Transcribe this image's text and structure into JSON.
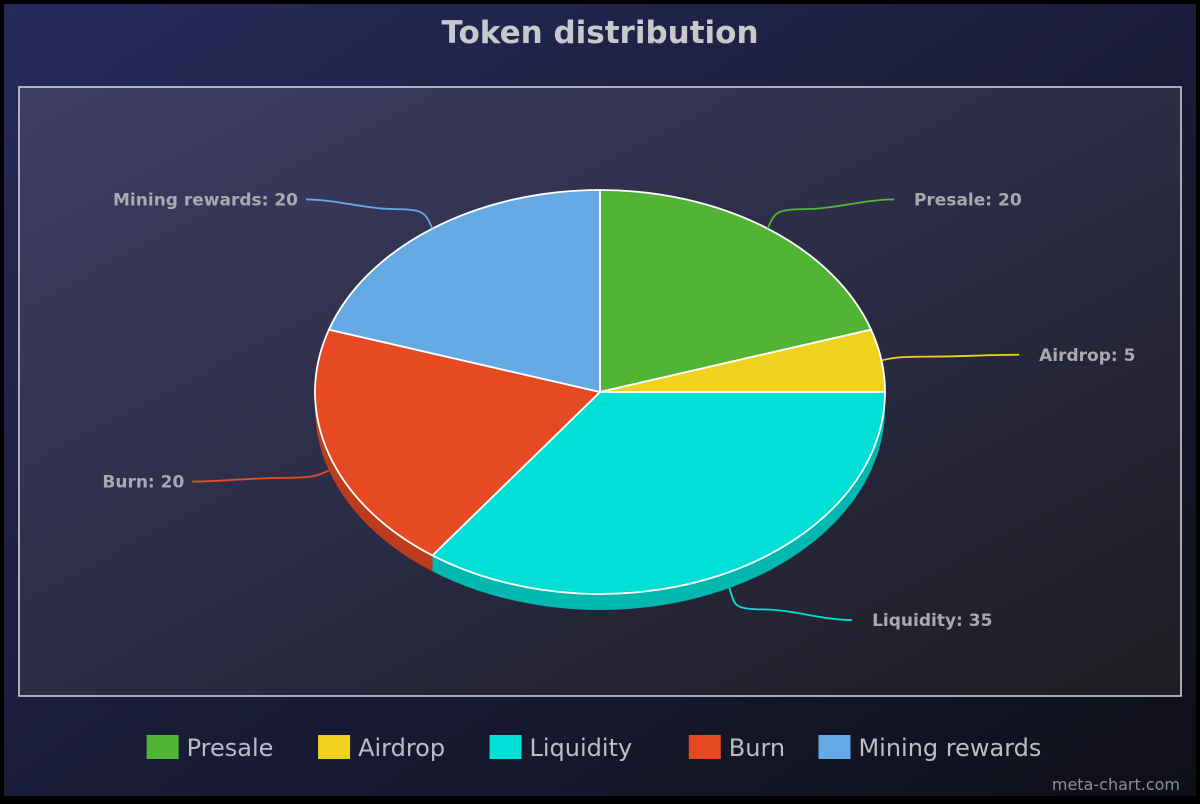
{
  "chart_data": {
    "type": "pie",
    "title": "Token distribution",
    "categories": [
      "Presale",
      "Airdrop",
      "Liquidity",
      "Burn",
      "Mining rewards"
    ],
    "values": [
      20,
      5,
      35,
      20,
      20
    ],
    "colors": [
      "#52b435",
      "#eed21e",
      "#00e0d6",
      "#e54a23",
      "#64a8e4"
    ],
    "legend_position": "bottom",
    "style": "3d"
  },
  "footer": {
    "credit": "meta-chart.com"
  }
}
